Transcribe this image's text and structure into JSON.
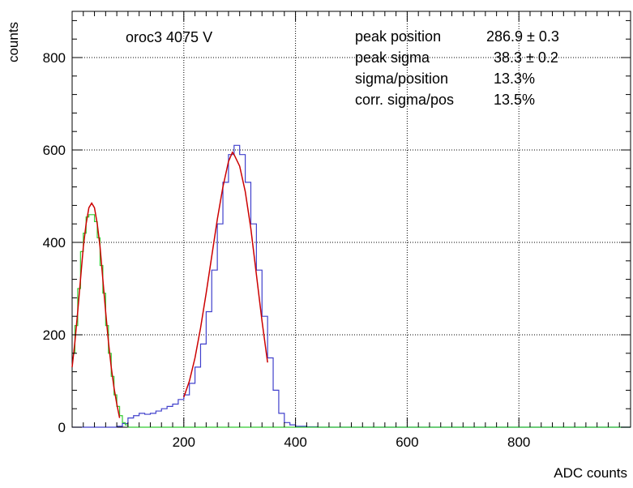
{
  "chart_data": {
    "type": "line",
    "title": "",
    "xlabel": "ADC counts",
    "ylabel": "counts",
    "xlim": [
      0,
      1000
    ],
    "ylim": [
      0,
      900
    ],
    "xticks": [
      200,
      400,
      600,
      800
    ],
    "yticks": [
      0,
      200,
      400,
      600,
      800
    ],
    "xtick_labels": [
      "200",
      "400",
      "600",
      "800"
    ],
    "ytick_labels": [
      "0",
      "200",
      "400",
      "600",
      "800"
    ],
    "grid": true,
    "label": "oroc3 4075 V",
    "stats": [
      {
        "label": "peak position",
        "value": "286.9 ± 0.3"
      },
      {
        "label": "peak sigma",
        "value": "38.3 ± 0.2"
      },
      {
        "label": "sigma/position",
        "value": "13.3%"
      },
      {
        "label": "corr. sigma/pos",
        "value": "13.5%"
      }
    ],
    "series": [
      {
        "kind": "histogram",
        "style": "step",
        "color": "#4040cc",
        "x": [
          0,
          10,
          20,
          30,
          40,
          50,
          60,
          70,
          80,
          90,
          100,
          110,
          120,
          130,
          140,
          150,
          160,
          170,
          180,
          190,
          200,
          210,
          220,
          230,
          240,
          250,
          260,
          270,
          280,
          290,
          300,
          310,
          320,
          330,
          340,
          350,
          360,
          370,
          380,
          390,
          400,
          420,
          440,
          460,
          480,
          500,
          600,
          700,
          800,
          900,
          1000
        ],
        "y": [
          0,
          0,
          0,
          0,
          0,
          0,
          0,
          0,
          2,
          8,
          20,
          25,
          30,
          28,
          30,
          35,
          40,
          45,
          50,
          60,
          70,
          95,
          130,
          180,
          250,
          340,
          440,
          530,
          590,
          610,
          590,
          530,
          440,
          340,
          240,
          150,
          80,
          30,
          10,
          5,
          2,
          1,
          0,
          0,
          0,
          0,
          0,
          0,
          0,
          0,
          0
        ]
      },
      {
        "kind": "histogram",
        "style": "step",
        "color": "#33cc33",
        "x": [
          0,
          5,
          10,
          15,
          20,
          25,
          30,
          35,
          40,
          45,
          50,
          55,
          60,
          65,
          70,
          75,
          80,
          85,
          90,
          95,
          100,
          110,
          150,
          200,
          300,
          400,
          500,
          600,
          800,
          1000
        ],
        "y": [
          160,
          220,
          300,
          380,
          420,
          455,
          460,
          460,
          445,
          410,
          350,
          290,
          220,
          160,
          110,
          70,
          45,
          25,
          10,
          5,
          0,
          0,
          0,
          0,
          0,
          0,
          0,
          0,
          0,
          0
        ]
      },
      {
        "kind": "fit",
        "color": "#cc0000",
        "x": [
          0,
          5,
          10,
          15,
          20,
          25,
          30,
          35,
          40,
          45,
          50,
          55,
          60,
          65,
          70,
          75,
          80,
          85
        ],
        "y": [
          130,
          185,
          250,
          320,
          390,
          440,
          475,
          485,
          475,
          440,
          390,
          320,
          250,
          185,
          130,
          85,
          50,
          20
        ]
      },
      {
        "kind": "fit",
        "color": "#cc0000",
        "x": [
          200,
          210,
          220,
          230,
          240,
          250,
          260,
          270,
          280,
          287,
          290,
          300,
          310,
          320,
          330,
          340,
          350
        ],
        "y": [
          65,
          100,
          150,
          215,
          290,
          370,
          450,
          520,
          575,
          595,
          590,
          565,
          510,
          430,
          330,
          230,
          140
        ]
      }
    ]
  }
}
